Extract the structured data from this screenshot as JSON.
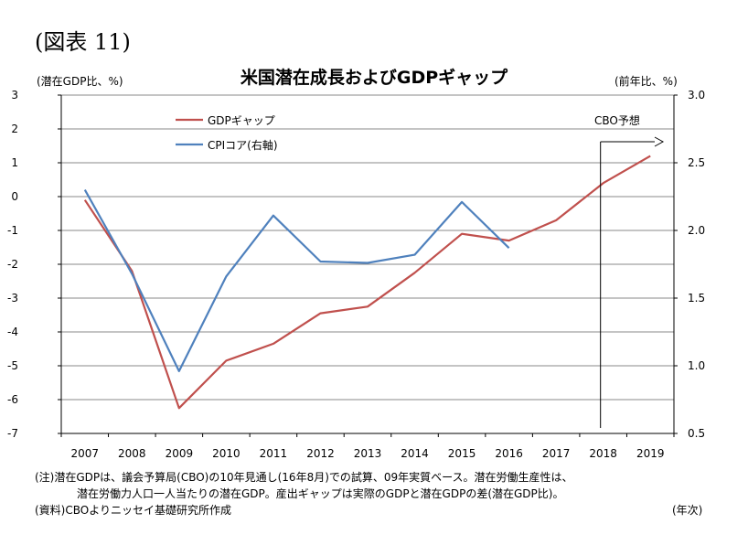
{
  "figure_label": "(図表 11)",
  "chart_data": {
    "type": "line",
    "title": "米国潜在成長およびGDPギャップ",
    "left_axis_label": "(潜在GDP比、%)",
    "right_axis_label": "(前年比、%)",
    "x_unit_label": "(年次)",
    "categories": [
      "2007",
      "2008",
      "2009",
      "2010",
      "2011",
      "2012",
      "2013",
      "2014",
      "2015",
      "2016",
      "2017",
      "2018",
      "2019"
    ],
    "ylim_left": [
      -7,
      3
    ],
    "ylim_right": [
      0.5,
      3.0
    ],
    "yticks_left": [
      "3",
      "2",
      "1",
      "0",
      "-1",
      "-2",
      "-3",
      "-4",
      "-5",
      "-6",
      "-7"
    ],
    "yticks_right": [
      "3.0",
      "2.5",
      "2.0",
      "1.5",
      "1.0",
      "0.5"
    ],
    "grid": true,
    "legend_position": "top-left",
    "series": [
      {
        "name": "GDPギャップ",
        "axis": "left",
        "color": "#c0504d",
        "values": [
          -0.1,
          -2.2,
          -6.25,
          -4.85,
          -4.35,
          -3.45,
          -3.25,
          -2.25,
          -1.1,
          -1.3,
          -0.7,
          0.4,
          1.2
        ]
      },
      {
        "name": "CPIコア(右軸)",
        "axis": "right",
        "color": "#4f81bd",
        "values": [
          2.3,
          1.68,
          0.96,
          1.66,
          2.11,
          1.77,
          1.76,
          1.82,
          2.21,
          1.87,
          null,
          null,
          null
        ]
      }
    ],
    "annotation": {
      "text": "CBO予想",
      "from_category": "2018"
    }
  },
  "notes": [
    "(注)潜在GDPは、議会予算局(CBO)の10年見通し(16年8月)での試算、09年実質ベース。潜在労働生産性は、",
    "潜在労働力人口一人当たりの潜在GDP。産出ギャップは実際のGDPと潜在GDPの差(潜在GDP比)。",
    "(資料)CBOよりニッセイ基礎研究所作成"
  ]
}
